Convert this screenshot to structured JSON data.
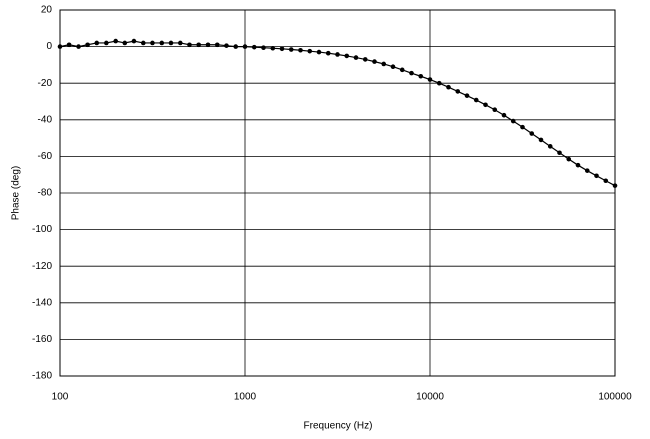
{
  "chart_data": {
    "type": "line",
    "xlabel": "Frequency (Hz)",
    "ylabel": "Phase (deg)",
    "xscale": "log",
    "xlim": [
      100,
      100000
    ],
    "xticks": [
      100,
      1000,
      10000,
      100000
    ],
    "ylim": [
      -180,
      20
    ],
    "yticks": [
      -180,
      -160,
      -140,
      -120,
      -100,
      -80,
      -60,
      -40,
      -20,
      0,
      20
    ],
    "grid": true,
    "markers": true,
    "x": [
      100,
      112,
      126,
      141,
      158,
      178,
      200,
      224,
      251,
      282,
      316,
      355,
      398,
      447,
      501,
      562,
      631,
      708,
      794,
      891,
      1000,
      1122,
      1259,
      1413,
      1585,
      1778,
      1995,
      2239,
      2512,
      2818,
      3162,
      3548,
      3981,
      4467,
      5012,
      5623,
      6310,
      7079,
      7943,
      8913,
      10000,
      11220,
      12589,
      14125,
      15849,
      17783,
      19953,
      22387,
      25119,
      28184,
      31623,
      35481,
      39811,
      44668,
      50119,
      56234,
      63096,
      70795,
      79433,
      89125,
      100000
    ],
    "series": [
      {
        "color": "#000000",
        "values": [
          0,
          1,
          0,
          1,
          2,
          2,
          3,
          2,
          3,
          2,
          2,
          2,
          2,
          2,
          1,
          1,
          1,
          1,
          0.5,
          0,
          0,
          -0.3,
          -0.6,
          -0.9,
          -1.2,
          -1.6,
          -2,
          -2.5,
          -3,
          -3.6,
          -4.3,
          -5.1,
          -6,
          -7,
          -8.2,
          -9.5,
          -11,
          -12.7,
          -14.5,
          -16.2,
          -18,
          -20,
          -22.2,
          -24.5,
          -26.8,
          -29.2,
          -31.8,
          -34.5,
          -37.5,
          -40.7,
          -44,
          -47.5,
          -51,
          -54.5,
          -58,
          -61.5,
          -64.8,
          -67.8,
          -70.6,
          -73.3,
          -76
        ]
      }
    ]
  }
}
